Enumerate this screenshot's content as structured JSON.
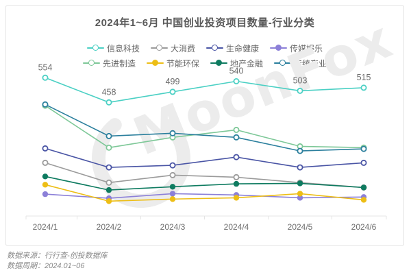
{
  "card": {
    "title": "2024年1~6月 中国创业投资项目数量-行业分类",
    "watermark": "MoonFox"
  },
  "chart_data": {
    "type": "line",
    "title": "2024年1~6月 中国创业投资项目数量-行业分类",
    "categories": [
      "2024/1",
      "2024/2",
      "2024/3",
      "2024/4",
      "2024/5",
      "2024/6"
    ],
    "series": [
      {
        "name": "信息科技",
        "color": "#4BD0C4",
        "marker": "open",
        "labeled": true,
        "values": [
          554,
          458,
          499,
          540,
          503,
          515
        ]
      },
      {
        "name": "大消费",
        "color": "#9B9B9B",
        "marker": "open",
        "labeled": false,
        "values": [
          223,
          146,
          175,
          167,
          146,
          127
        ]
      },
      {
        "name": "生命健康",
        "color": "#4A55A5",
        "marker": "open",
        "labeled": false,
        "values": [
          279,
          205,
          213,
          245,
          205,
          223
        ]
      },
      {
        "name": "传媒娱乐",
        "color": "#8C80D8",
        "marker": "filled",
        "labeled": false,
        "values": [
          101,
          85,
          103,
          98,
          87,
          90
        ]
      },
      {
        "name": "先进制造",
        "color": "#7EC898",
        "marker": "open",
        "labeled": false,
        "values": [
          445,
          282,
          322,
          351,
          287,
          282
        ]
      },
      {
        "name": "节能环保",
        "color": "#EDBE16",
        "marker": "filled",
        "labeled": false,
        "values": [
          138,
          74,
          82,
          87,
          103,
          79
        ]
      },
      {
        "name": "地产金融",
        "color": "#0E7B60",
        "marker": "filled",
        "labeled": false,
        "values": [
          170,
          117,
          130,
          141,
          143,
          127
        ]
      },
      {
        "name": "传统产业",
        "color": "#2B7F9D",
        "marker": "open",
        "labeled": false,
        "values": [
          450,
          327,
          338,
          322,
          269,
          277
        ]
      }
    ],
    "legend_rows": [
      [
        "信息科技",
        "大消费",
        "生命健康",
        "传媒娱乐"
      ],
      [
        "先进制造",
        "节能环保",
        "地产金融",
        "传统产业"
      ]
    ],
    "legend_position": "top",
    "grid": false,
    "xlabel": "",
    "ylabel": "",
    "value_labels_series": "信息科技"
  },
  "footer": {
    "source_label": "数据来源：行行查-创投数据库",
    "period_label": "数据周期：2024.01~06"
  }
}
